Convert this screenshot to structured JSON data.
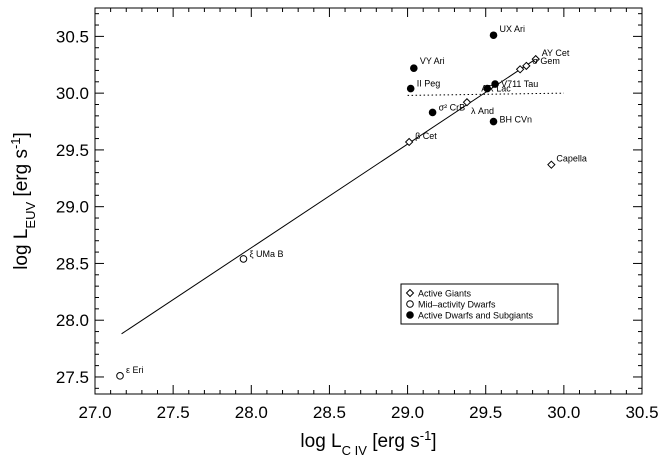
{
  "chart_data": {
    "type": "scatter",
    "xlim": [
      27.0,
      30.5
    ],
    "ylim": [
      27.35,
      30.75
    ],
    "x_ticks": [
      "27.0",
      "27.5",
      "28.0",
      "28.5",
      "29.0",
      "29.5",
      "30.0",
      "30.5"
    ],
    "y_ticks": [
      "27.5",
      "28.0",
      "28.5",
      "29.0",
      "29.5",
      "30.0",
      "30.5"
    ],
    "x_tick_values": [
      27.0,
      27.5,
      28.0,
      28.5,
      29.0,
      29.5,
      30.0,
      30.5
    ],
    "y_tick_values": [
      27.5,
      28.0,
      28.5,
      29.0,
      29.5,
      30.0,
      30.5
    ],
    "xlabel": {
      "main": "log L",
      "sub": "C IV",
      "unit": " [erg s",
      "sup": "-1",
      "close": "]"
    },
    "ylabel": {
      "main": "log L",
      "sub": "EUV",
      "unit": " [erg s",
      "sup": "-1",
      "close": "]"
    },
    "fit_line": [
      [
        27.17,
        27.88
      ],
      [
        29.82,
        30.3
      ]
    ],
    "dotted_line": [
      [
        29.0,
        29.98
      ],
      [
        30.0,
        30.0
      ]
    ],
    "series": [
      {
        "name": "Active Giants",
        "marker": "diamond",
        "points": [
          {
            "x": 29.01,
            "y": 29.57,
            "label": "β Cet"
          },
          {
            "x": 29.38,
            "y": 29.92,
            "label": "λ And"
          },
          {
            "x": 29.82,
            "y": 30.3,
            "label": "AY Cet"
          },
          {
            "x": 29.76,
            "y": 30.24,
            "label": "σ Gem"
          },
          {
            "x": 29.72,
            "y": 30.21,
            "label": ""
          },
          {
            "x": 29.92,
            "y": 29.37,
            "label": "Capella"
          }
        ]
      },
      {
        "name": "Mid-activity Dwarfs",
        "marker": "circle",
        "points": [
          {
            "x": 27.16,
            "y": 27.51,
            "label": "ε Eri"
          },
          {
            "x": 27.95,
            "y": 28.54,
            "label": "ξ UMa B"
          }
        ]
      },
      {
        "name": "Active Dwarfs and Subgiants",
        "marker": "filled-circle",
        "points": [
          {
            "x": 29.55,
            "y": 30.51,
            "label": "UX Ari"
          },
          {
            "x": 29.04,
            "y": 30.22,
            "label": "VY Ari"
          },
          {
            "x": 29.02,
            "y": 30.04,
            "label": "II Peg"
          },
          {
            "x": 29.16,
            "y": 29.83,
            "label": "σ² CrB"
          },
          {
            "x": 29.51,
            "y": 30.04,
            "label": "AR Lac"
          },
          {
            "x": 29.56,
            "y": 30.08,
            "label": "V711 Tau"
          },
          {
            "x": 29.55,
            "y": 29.75,
            "label": "BH CVn"
          }
        ]
      }
    ],
    "legend": {
      "placement": "lower-right",
      "entries": [
        {
          "label": "Active Giants",
          "marker": "diamond"
        },
        {
          "label": "Mid–activity Dwarfs",
          "marker": "circle"
        },
        {
          "label": "Active Dwarfs and Subgiants",
          "marker": "filled-circle"
        }
      ]
    },
    "grid": false
  }
}
